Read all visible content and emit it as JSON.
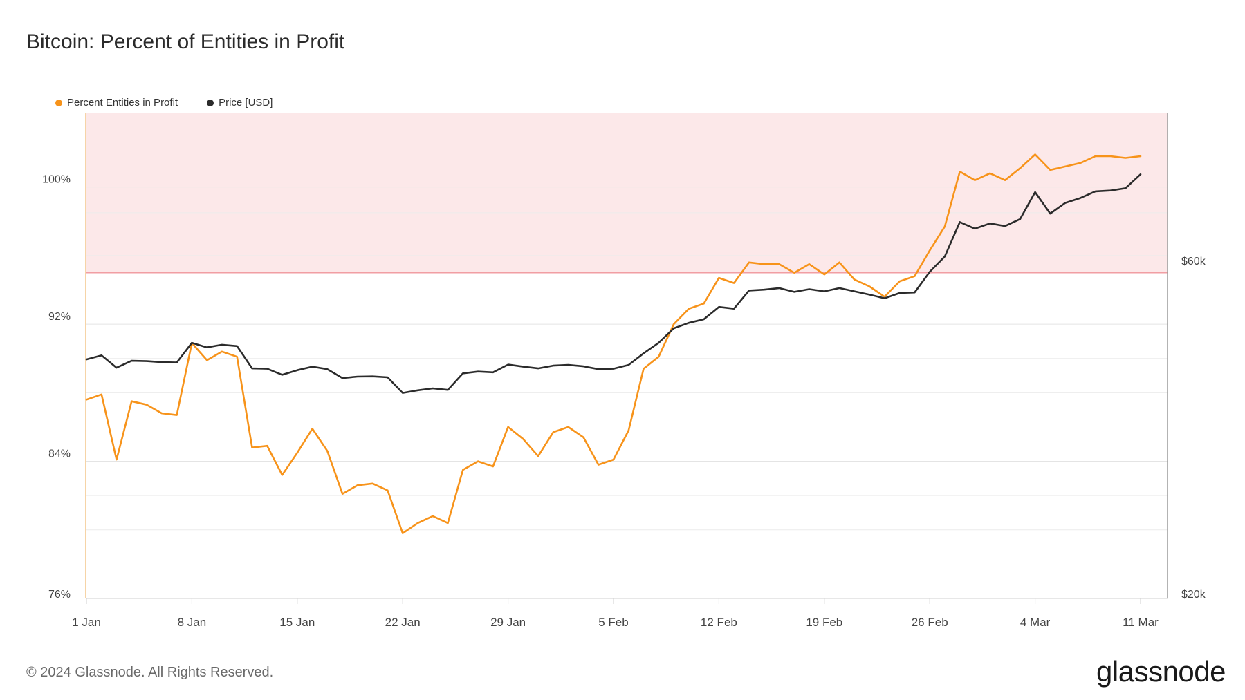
{
  "title": "Bitcoin: Percent of Entities in Profit",
  "footer": "© 2024 Glassnode. All Rights Reserved.",
  "brand": "glassnode",
  "colors": {
    "percent": "#f7931a",
    "price": "#2b2b2b",
    "zone_fill": "#fce8e9",
    "zone_line": "#f19ea3",
    "grid": "#ececec"
  },
  "legend": [
    {
      "label": "Percent Entities in Profit",
      "color": "#f7931a"
    },
    {
      "label": "Price [USD]",
      "color": "#2b2b2b"
    }
  ],
  "chart_data": {
    "type": "line",
    "title": "Bitcoin: Percent of Entities in Profit",
    "x_tick_labels": [
      "1 Jan",
      "8 Jan",
      "15 Jan",
      "22 Jan",
      "29 Jan",
      "5 Feb",
      "12 Feb",
      "19 Feb",
      "26 Feb",
      "4 Mar",
      "11 Mar"
    ],
    "x_tick_day_index": [
      0,
      7,
      14,
      21,
      28,
      35,
      42,
      49,
      56,
      63,
      70
    ],
    "y_left": {
      "ticks": [
        76,
        84,
        92,
        100
      ],
      "tick_labels": [
        "76%",
        "84%",
        "92%",
        "100%"
      ],
      "range": [
        76,
        104.3
      ]
    },
    "y_right": {
      "ticks": [
        20000,
        60000
      ],
      "tick_labels": [
        "$20k",
        "$60k"
      ],
      "range": [
        20000,
        100000
      ],
      "scale": "log"
    },
    "threshold": {
      "value": 95,
      "label": "",
      "shaded_above": true
    },
    "grid": true,
    "legend_position": "top-left",
    "series": [
      {
        "name": "Percent Entities in Profit",
        "axis": "left",
        "color": "#f7931a",
        "values": [
          87.6,
          87.9,
          84.1,
          87.5,
          87.3,
          86.8,
          86.7,
          90.9,
          89.9,
          90.4,
          90.1,
          84.8,
          84.9,
          83.2,
          84.5,
          85.9,
          84.6,
          82.1,
          82.6,
          82.7,
          82.3,
          79.8,
          80.4,
          80.8,
          80.4,
          83.5,
          84.0,
          83.7,
          86.0,
          85.3,
          84.3,
          85.7,
          86.0,
          85.4,
          83.8,
          84.1,
          85.8,
          89.4,
          90.1,
          92.0,
          92.9,
          93.2,
          94.7,
          94.4,
          95.6,
          95.5,
          95.5,
          95.0,
          95.5,
          94.9,
          95.6,
          94.6,
          94.2,
          93.6,
          94.5,
          94.8,
          96.3,
          97.7,
          100.9,
          100.4,
          100.8,
          100.4,
          101.1,
          101.9,
          101.0,
          101.2,
          101.4,
          101.8,
          101.8,
          101.7,
          101.8
        ]
      },
      {
        "name": "Price [USD]",
        "axis": "right",
        "color": "#2b2b2b",
        "values": [
          44200,
          44800,
          43000,
          44000,
          43950,
          43800,
          43750,
          46700,
          46000,
          46400,
          46200,
          42900,
          42850,
          42000,
          42650,
          43150,
          42800,
          41550,
          41750,
          41780,
          41650,
          39550,
          39900,
          40150,
          39950,
          42200,
          42450,
          42350,
          43450,
          43150,
          42900,
          43300,
          43400,
          43200,
          42800,
          42850,
          43400,
          45100,
          46700,
          49000,
          49900,
          50500,
          52600,
          52300,
          55550,
          55700,
          56000,
          55300,
          55800,
          55400,
          56000,
          55400,
          54800,
          54150,
          55100,
          55200,
          59100,
          62200,
          69700,
          68200,
          69400,
          68800,
          70400,
          77000,
          71700,
          74300,
          75500,
          77200,
          77400,
          78000,
          81700
        ]
      }
    ]
  }
}
